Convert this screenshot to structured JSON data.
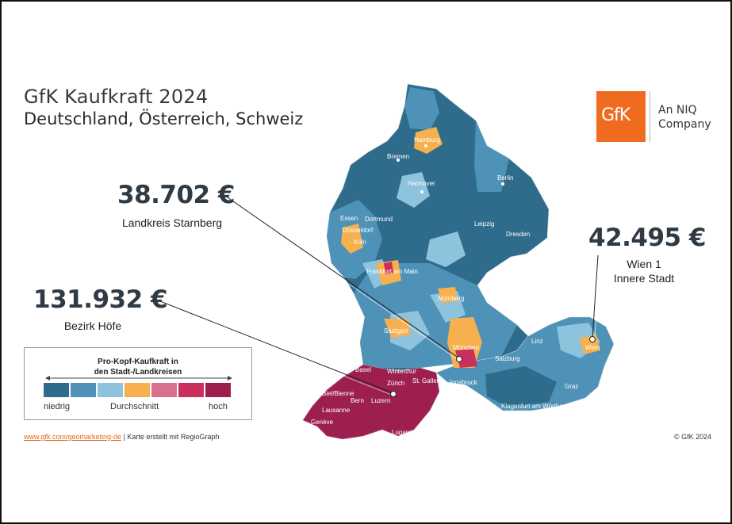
{
  "title": {
    "line1": "GfK Kaufkraft 2024",
    "line2": "Deutschland, Österreich, Schweiz"
  },
  "logo": {
    "brand": "GfK",
    "company_line1": "An NIQ",
    "company_line2": "Company"
  },
  "callouts": {
    "starnberg": {
      "value": "38.702 €",
      "label": "Landkreis Starnberg"
    },
    "hoefe": {
      "value": "131.932 €",
      "label": "Bezirk Höfe"
    },
    "wien": {
      "value": "42.495 €",
      "label_line1": "Wien 1",
      "label_line2": "Innere Stadt"
    }
  },
  "legend": {
    "title_line1": "Pro-Kopf-Kaufkraft in",
    "title_line2": "den Stadt-/Landkreisen",
    "colors": [
      "#2f6b8a",
      "#4e92b8",
      "#8ec3de",
      "#f6b04e",
      "#d9708e",
      "#c9305e",
      "#9c1f4f"
    ],
    "low": "niedrig",
    "mid": "Durchschnitt",
    "high": "hoch"
  },
  "cities": {
    "hamburg": "Hamburg",
    "bremen": "Bremen",
    "berlin": "Berlin",
    "hannover": "Hannover",
    "essen": "Essen",
    "dortmund": "Dortmund",
    "duesseldorf": "Düsseldorf",
    "koeln": "Köln",
    "leipzig": "Leipzig",
    "dresden": "Dresden",
    "frankfurt": "Frankfurt am Main",
    "nuernberg": "Nürnberg",
    "stuttgart": "Stuttgart",
    "muenchen": "München",
    "linz": "Linz",
    "wien": "Wien",
    "salzburg": "Salzburg",
    "innsbruck": "Innsbruck",
    "graz": "Graz",
    "klagenfurt": "Klagenfurt am Wörthersee",
    "basel": "Basel",
    "winterthur": "Winterthur",
    "zuerich": "Zürich",
    "stgallen": "St. Gallen",
    "biel": "Biel/Bienne",
    "bern": "Bern",
    "luzern": "Luzern",
    "lausanne": "Lausanne",
    "geneve": "Genève",
    "lugano": "Lugano"
  },
  "footer": {
    "link": "www.gfk.com/geomarketing-de",
    "text": " | Karte erstellt mit RegioGraph",
    "copyright": "© GfK 2024"
  }
}
